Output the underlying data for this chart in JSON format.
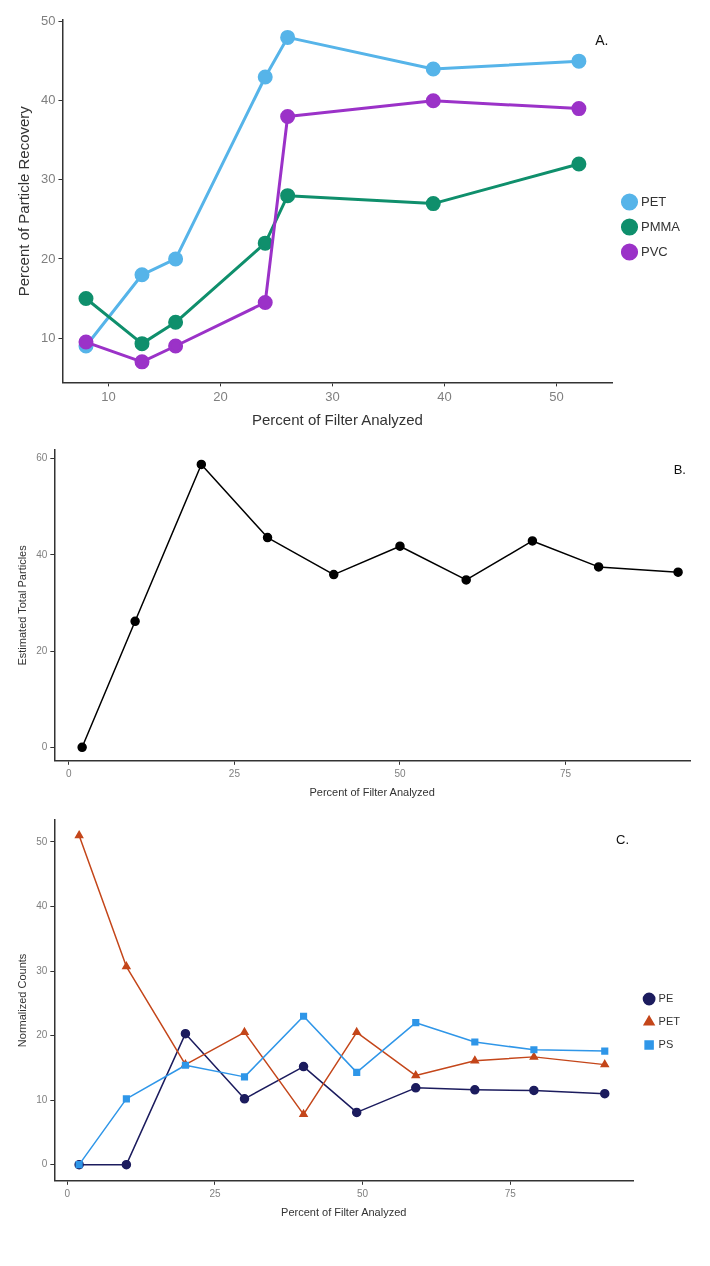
{
  "chart_data": [
    {
      "type": "line",
      "xlabel": "Percent of Filter Analyzed",
      "ylabel": "Percent of Particle Recovery",
      "annotations": [
        "A."
      ],
      "x": [
        8,
        13,
        16,
        24,
        26,
        39,
        52
      ],
      "xlim": [
        5.9,
        55
      ],
      "xticks": [
        10,
        20,
        30,
        40,
        50
      ],
      "ylim": [
        4.4,
        50.2
      ],
      "yticks": [
        10,
        20,
        30,
        40,
        50
      ],
      "grid": false,
      "legend": "right",
      "marker": "circle",
      "line_style": "solid",
      "series": [
        {
          "name": "PET",
          "color": "#56b4e9",
          "values": [
            9,
            18,
            20,
            43,
            48,
            44,
            45
          ]
        },
        {
          "name": "PMMA",
          "color": "#0f8f6c",
          "values": [
            15,
            9.3,
            12,
            22,
            28,
            27,
            32
          ]
        },
        {
          "name": "PVC",
          "color": "#9b32c8",
          "values": [
            9.5,
            7,
            9,
            14.5,
            38,
            40,
            39
          ]
        }
      ]
    },
    {
      "type": "line",
      "xlabel": "Percent of Filter Analyzed",
      "ylabel": "Estimated Total Particles",
      "annotations": [
        "B."
      ],
      "x": [
        2,
        10,
        20,
        30,
        40,
        50,
        60,
        70,
        80,
        92
      ],
      "xlim": [
        -2.2,
        93.8
      ],
      "xticks": [
        0,
        25,
        50,
        75
      ],
      "ylim": [
        -2.8,
        61.8
      ],
      "yticks": [
        0,
        20,
        40,
        60
      ],
      "grid": false,
      "legend": false,
      "marker": "circle",
      "line_style": "solid",
      "series": [
        {
          "color": "#000000",
          "values": [
            0,
            26.2,
            58.8,
            43.6,
            35.9,
            41.8,
            34.8,
            42.9,
            37.5,
            36.4
          ]
        }
      ]
    },
    {
      "type": "line",
      "xlabel": "Percent of Filter Analyzed",
      "ylabel": "Normalized Counts",
      "annotations": [
        "C."
      ],
      "x": [
        2,
        10,
        20,
        30,
        40,
        49,
        59,
        69,
        79,
        91
      ],
      "xlim": [
        -2.2,
        95.8
      ],
      "xticks": [
        0,
        25,
        50,
        75
      ],
      "ylim": [
        -2.5,
        53.4
      ],
      "yticks": [
        0,
        10,
        20,
        30,
        40,
        50
      ],
      "grid": false,
      "legend": "right",
      "line_style": "solid",
      "series": [
        {
          "name": "PE",
          "color": "#1c1c5e",
          "marker": "circle",
          "values": [
            0,
            0,
            20.3,
            10.2,
            15.2,
            8.1,
            11.9,
            11.6,
            11.5,
            11
          ]
        },
        {
          "name": "PET",
          "color": "#c4461a",
          "marker": "triangle",
          "values": [
            51,
            30.7,
            15.5,
            20.5,
            7.8,
            20.5,
            13.8,
            16.1,
            16.7,
            15.5
          ]
        },
        {
          "name": "PS",
          "color": "#2f96e8",
          "marker": "square",
          "values": [
            0,
            10.2,
            15.4,
            13.6,
            23,
            14.3,
            22,
            19,
            17.8,
            17.6
          ]
        }
      ]
    }
  ]
}
